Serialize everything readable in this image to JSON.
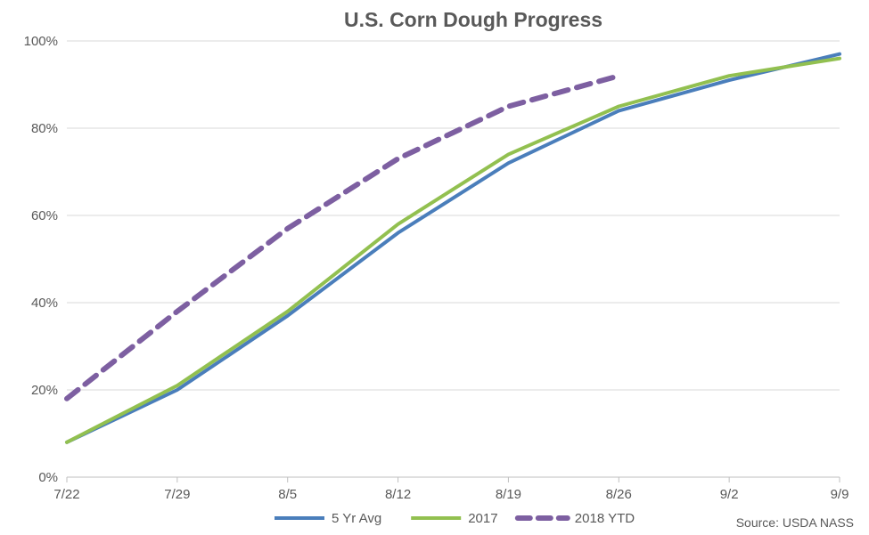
{
  "chart_data": {
    "type": "line",
    "title": "U.S. Corn Dough Progress",
    "x": [
      "7/22",
      "7/29",
      "8/5",
      "8/12",
      "8/19",
      "8/26",
      "9/2",
      "9/9"
    ],
    "ylim": [
      0,
      100
    ],
    "yticks": [
      "0%",
      "20%",
      "40%",
      "60%",
      "80%",
      "100%"
    ],
    "yticks_values": [
      0,
      20,
      40,
      60,
      80,
      100
    ],
    "grid": true,
    "legend_position": "bottom",
    "series": [
      {
        "name": "5 Yr Avg",
        "values": [
          8,
          20,
          37,
          56,
          72,
          84,
          91,
          97
        ],
        "color": "#4a7ebb",
        "style": "solid"
      },
      {
        "name": "2017",
        "values": [
          8,
          21,
          38,
          58,
          74,
          85,
          92,
          96
        ],
        "color": "#92c050",
        "style": "solid"
      },
      {
        "name": "2018 YTD",
        "values": [
          18,
          38,
          57,
          73,
          85,
          92,
          null,
          null
        ],
        "color": "#7d5fa1",
        "style": "dashed"
      }
    ],
    "source": "Source: USDA NASS"
  }
}
